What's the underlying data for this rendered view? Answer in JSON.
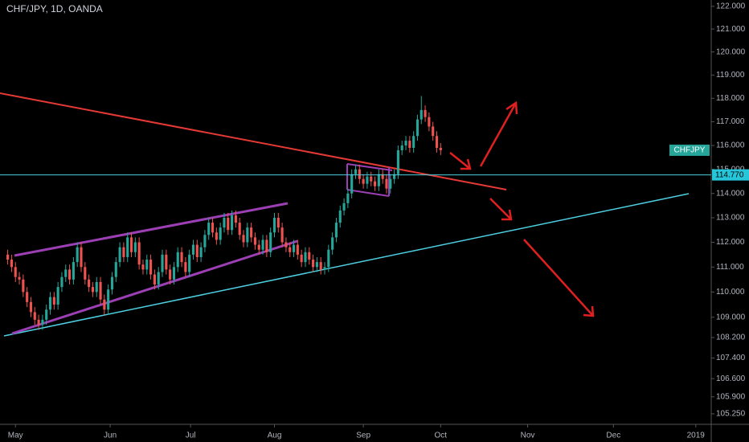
{
  "chart_data": {
    "type": "candlestick",
    "title": "CHF/JPY, 1D, OANDA",
    "symbol": "CHFJPY",
    "hline": {
      "value": 114.77,
      "label": "114.770"
    },
    "log_scale": true,
    "grid": false,
    "up_color": "#26a69a",
    "down_color": "#ef5350",
    "xlim": [
      -2,
      182
    ],
    "ylim": [
      104.85,
      122.28
    ],
    "xticks": [
      {
        "value": 2,
        "label": "May"
      },
      {
        "value": 26.5,
        "label": "Jun"
      },
      {
        "value": 47.3,
        "label": "Jul"
      },
      {
        "value": 69,
        "label": "Aug"
      },
      {
        "value": 92,
        "label": "Sep"
      },
      {
        "value": 112,
        "label": "Oct"
      },
      {
        "value": 134.5,
        "label": "Nov"
      },
      {
        "value": 156.7,
        "label": "Dec"
      },
      {
        "value": 178,
        "label": "2019"
      }
    ],
    "yticks": [
      {
        "value": 122,
        "label": "122.000"
      },
      {
        "value": 121,
        "label": "121.000"
      },
      {
        "value": 120,
        "label": "120.000"
      },
      {
        "value": 119,
        "label": "119.000"
      },
      {
        "value": 118,
        "label": "118.000"
      },
      {
        "value": 117,
        "label": "117.000"
      },
      {
        "value": 116,
        "label": "116.000"
      },
      {
        "value": 115,
        "label": "115.000"
      },
      {
        "value": 114,
        "label": "114.000"
      },
      {
        "value": 113,
        "label": "113.000"
      },
      {
        "value": 112,
        "label": "112.000"
      },
      {
        "value": 111,
        "label": "111.000"
      },
      {
        "value": 110,
        "label": "110.000"
      },
      {
        "value": 109,
        "label": "109.000"
      },
      {
        "value": 108.2,
        "label": "108.200"
      },
      {
        "value": 107.4,
        "label": "107.400"
      },
      {
        "value": 106.6,
        "label": "106.600"
      },
      {
        "value": 105.9,
        "label": "105.900"
      },
      {
        "value": 105.25,
        "label": "105.250"
      }
    ],
    "open": [
      111.5,
      111.3,
      111.0,
      110.6,
      110.5,
      110.0,
      109.6,
      109.2,
      108.9,
      108.7,
      108.9,
      109.3,
      109.8,
      109.5,
      110.2,
      110.6,
      110.9,
      110.5,
      111.2,
      111.8,
      111.0,
      110.5,
      110.2,
      110.0,
      110.4,
      109.7,
      109.3,
      110.1,
      110.6,
      111.2,
      111.8,
      111.4,
      112.2,
      111.6,
      112.0,
      111.1,
      110.9,
      111.3,
      110.7,
      110.3,
      110.8,
      111.5,
      110.9,
      110.5,
      111.0,
      111.6,
      111.2,
      110.8,
      111.5,
      111.9,
      111.4,
      111.8,
      112.3,
      112.8,
      112.4,
      112.1,
      112.6,
      113.0,
      112.5,
      113.1,
      112.8,
      112.3,
      112.0,
      112.6,
      112.2,
      111.9,
      111.7,
      112.1,
      111.6,
      112.4,
      113.0,
      112.6,
      112.0,
      111.8,
      111.6,
      111.9,
      111.5,
      111.2,
      111.6,
      111.3,
      111.0,
      111.2,
      110.9,
      111.0,
      111.7,
      112.2,
      112.8,
      113.3,
      113.6,
      114.0,
      114.8,
      115.0,
      114.6,
      114.4,
      114.7,
      114.5,
      114.3,
      114.8,
      114.6,
      114.2,
      114.6,
      114.8,
      115.8,
      116.0,
      116.2,
      115.9,
      116.4,
      117.1,
      117.5,
      117.2,
      116.8,
      116.4,
      115.9
    ],
    "high": [
      111.7,
      111.5,
      111.2,
      110.8,
      110.7,
      110.2,
      109.8,
      109.4,
      109.1,
      109.1,
      109.5,
      110.0,
      110.0,
      110.4,
      110.8,
      111.1,
      111.1,
      111.4,
      112.0,
      112.0,
      111.2,
      110.7,
      110.4,
      110.6,
      110.6,
      109.9,
      110.3,
      110.8,
      111.4,
      112.0,
      112.0,
      112.4,
      112.4,
      112.2,
      112.2,
      111.3,
      111.5,
      111.5,
      110.9,
      111.0,
      111.7,
      111.7,
      111.1,
      111.2,
      111.8,
      111.8,
      111.4,
      111.7,
      112.1,
      112.1,
      112.0,
      112.5,
      113.0,
      113.0,
      112.6,
      112.8,
      113.2,
      113.2,
      113.3,
      113.3,
      113.0,
      112.5,
      112.8,
      112.8,
      112.4,
      112.1,
      112.3,
      112.3,
      112.6,
      113.2,
      113.2,
      112.8,
      112.2,
      112.0,
      112.1,
      112.1,
      111.7,
      111.8,
      111.8,
      111.5,
      111.4,
      111.4,
      111.2,
      111.9,
      112.4,
      113.0,
      113.5,
      113.8,
      114.2,
      115.0,
      115.2,
      115.2,
      114.8,
      114.9,
      114.9,
      114.7,
      115.0,
      115.0,
      114.8,
      114.8,
      115.0,
      116.0,
      116.2,
      116.4,
      116.4,
      116.6,
      117.3,
      118.1,
      117.7,
      117.4,
      117.0,
      116.6,
      116.1
    ],
    "low": [
      111.1,
      110.8,
      110.4,
      110.3,
      109.8,
      109.4,
      109.0,
      108.7,
      108.5,
      108.5,
      108.7,
      109.1,
      109.3,
      109.3,
      110.0,
      110.4,
      110.3,
      110.3,
      111.0,
      110.8,
      110.3,
      110.0,
      109.8,
      109.8,
      109.5,
      109.1,
      109.1,
      109.9,
      110.4,
      111.0,
      111.2,
      111.2,
      111.4,
      111.4,
      110.9,
      110.7,
      110.7,
      110.5,
      110.1,
      110.1,
      110.6,
      110.7,
      110.3,
      110.3,
      110.8,
      111.0,
      110.6,
      110.6,
      111.3,
      111.2,
      111.2,
      111.6,
      112.1,
      112.2,
      111.9,
      111.9,
      112.4,
      112.3,
      112.3,
      112.6,
      112.1,
      111.8,
      111.8,
      112.0,
      111.7,
      111.5,
      111.5,
      111.4,
      111.4,
      112.2,
      112.4,
      111.8,
      111.6,
      111.4,
      111.4,
      111.3,
      111.0,
      111.0,
      111.1,
      110.8,
      110.8,
      110.7,
      110.7,
      110.8,
      111.5,
      112.0,
      112.6,
      113.1,
      113.4,
      113.8,
      114.6,
      114.4,
      114.2,
      114.2,
      114.3,
      114.1,
      114.1,
      114.4,
      114.0,
      114.0,
      114.4,
      114.6,
      115.6,
      115.8,
      115.7,
      115.7,
      116.2,
      116.9,
      117.0,
      116.6,
      116.2,
      115.7,
      115.6
    ],
    "close": [
      111.3,
      111.0,
      110.6,
      110.5,
      110.0,
      109.6,
      109.2,
      108.9,
      108.7,
      108.9,
      109.3,
      109.8,
      109.5,
      110.2,
      110.6,
      110.9,
      110.5,
      111.2,
      111.8,
      111.0,
      110.5,
      110.2,
      110.0,
      110.4,
      109.7,
      109.3,
      110.1,
      110.6,
      111.2,
      111.8,
      111.4,
      112.2,
      111.6,
      112.0,
      111.1,
      110.9,
      111.3,
      110.7,
      110.3,
      110.8,
      111.5,
      110.9,
      110.5,
      111.0,
      111.6,
      111.2,
      110.8,
      111.5,
      111.9,
      111.4,
      111.8,
      112.3,
      112.8,
      112.4,
      112.1,
      112.6,
      113.0,
      112.5,
      113.1,
      112.8,
      112.3,
      112.0,
      112.6,
      112.2,
      111.9,
      111.7,
      112.1,
      111.6,
      112.4,
      113.0,
      112.6,
      112.0,
      111.8,
      111.6,
      111.9,
      111.5,
      111.2,
      111.6,
      111.3,
      111.0,
      111.2,
      110.9,
      111.0,
      111.7,
      112.2,
      112.8,
      113.3,
      113.6,
      114.0,
      114.8,
      115.0,
      114.6,
      114.4,
      114.7,
      114.5,
      114.3,
      114.8,
      114.6,
      114.2,
      114.6,
      114.8,
      115.8,
      116.0,
      116.2,
      115.9,
      116.4,
      117.1,
      117.5,
      117.2,
      116.8,
      116.4,
      115.9,
      115.8
    ]
  }
}
